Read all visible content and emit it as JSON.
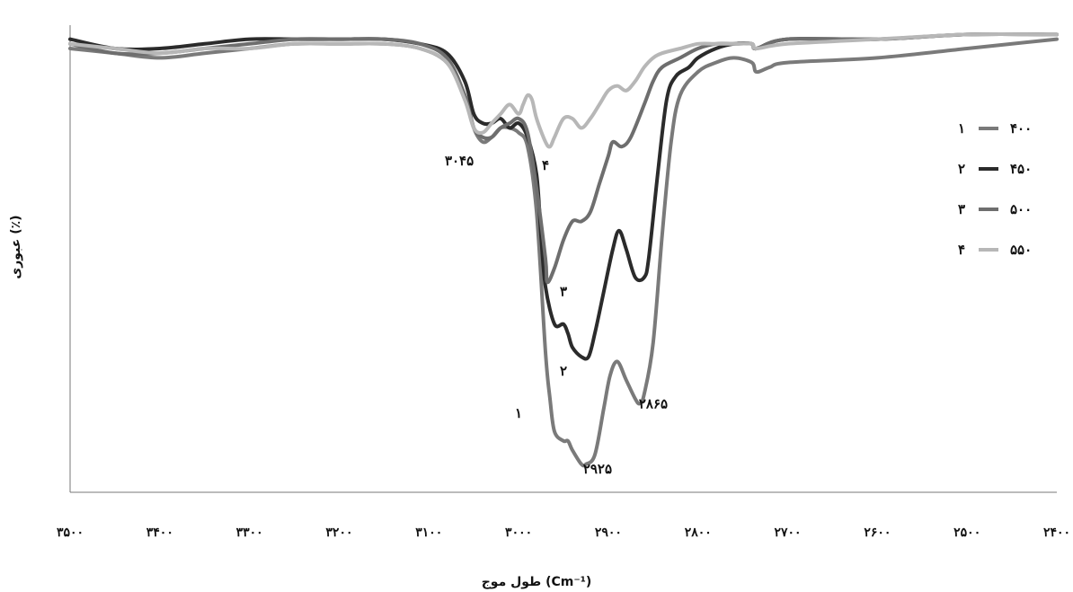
{
  "chart_data": {
    "type": "line",
    "xlabel": "طول موج",
    "xlabel_unit": "(Cm⁻¹)",
    "ylabel": "عبوری (٪)",
    "xlim": [
      3500,
      2400
    ],
    "x_reversed": true,
    "ylim": [
      0,
      100
    ],
    "grid": false,
    "legend_position": "right",
    "x_ticks": [
      {
        "value": 3500,
        "label": "۳۵۰۰"
      },
      {
        "value": 3400,
        "label": "۳۴۰۰"
      },
      {
        "value": 3300,
        "label": "۳۳۰۰"
      },
      {
        "value": 3200,
        "label": "۳۲۰۰"
      },
      {
        "value": 3100,
        "label": "۳۱۰۰"
      },
      {
        "value": 3000,
        "label": "۳۰۰۰"
      },
      {
        "value": 2900,
        "label": "۲۹۰۰"
      },
      {
        "value": 2800,
        "label": "۲۸۰۰"
      },
      {
        "value": 2700,
        "label": "۲۷۰۰"
      },
      {
        "value": 2600,
        "label": "۲۶۰۰"
      },
      {
        "value": 2500,
        "label": "۲۵۰۰"
      },
      {
        "value": 2400,
        "label": "۲۴۰۰"
      }
    ],
    "series": [
      {
        "name": "۴۰۰",
        "number": "۱",
        "color": "#7a7a7a",
        "points": [
          [
            3500,
            95
          ],
          [
            3450,
            94
          ],
          [
            3400,
            93
          ],
          [
            3350,
            94
          ],
          [
            3300,
            95
          ],
          [
            3250,
            96
          ],
          [
            3200,
            96
          ],
          [
            3150,
            96
          ],
          [
            3110,
            95
          ],
          [
            3080,
            92
          ],
          [
            3060,
            85
          ],
          [
            3050,
            78
          ],
          [
            3040,
            75
          ],
          [
            3030,
            76
          ],
          [
            3020,
            78
          ],
          [
            3010,
            78
          ],
          [
            3000,
            77
          ],
          [
            2990,
            74
          ],
          [
            2980,
            60
          ],
          [
            2970,
            30
          ],
          [
            2965,
            20
          ],
          [
            2960,
            13
          ],
          [
            2950,
            11
          ],
          [
            2945,
            11
          ],
          [
            2940,
            9
          ],
          [
            2930,
            6
          ],
          [
            2925,
            6
          ],
          [
            2915,
            8
          ],
          [
            2905,
            18
          ],
          [
            2898,
            25
          ],
          [
            2890,
            28
          ],
          [
            2880,
            24
          ],
          [
            2870,
            20
          ],
          [
            2865,
            19
          ],
          [
            2860,
            21
          ],
          [
            2850,
            32
          ],
          [
            2840,
            55
          ],
          [
            2830,
            75
          ],
          [
            2820,
            85
          ],
          [
            2800,
            90
          ],
          [
            2780,
            92
          ],
          [
            2760,
            93
          ],
          [
            2740,
            92
          ],
          [
            2735,
            90
          ],
          [
            2720,
            91
          ],
          [
            2700,
            92
          ],
          [
            2600,
            93
          ],
          [
            2500,
            95
          ],
          [
            2400,
            97
          ]
        ]
      },
      {
        "name": "۴۵۰",
        "number": "۲",
        "color": "#2b2b2b",
        "points": [
          [
            3500,
            97
          ],
          [
            3450,
            95
          ],
          [
            3400,
            95
          ],
          [
            3350,
            96
          ],
          [
            3300,
            97
          ],
          [
            3250,
            97
          ],
          [
            3200,
            97
          ],
          [
            3150,
            97
          ],
          [
            3110,
            96
          ],
          [
            3080,
            94
          ],
          [
            3060,
            88
          ],
          [
            3050,
            81
          ],
          [
            3040,
            79
          ],
          [
            3030,
            79
          ],
          [
            3020,
            80
          ],
          [
            3010,
            78
          ],
          [
            3000,
            79
          ],
          [
            2990,
            76
          ],
          [
            2980,
            68
          ],
          [
            2975,
            55
          ],
          [
            2970,
            44
          ],
          [
            2960,
            36
          ],
          [
            2950,
            36
          ],
          [
            2945,
            34
          ],
          [
            2940,
            31
          ],
          [
            2930,
            29
          ],
          [
            2922,
            29
          ],
          [
            2915,
            34
          ],
          [
            2905,
            43
          ],
          [
            2895,
            52
          ],
          [
            2888,
            56
          ],
          [
            2880,
            52
          ],
          [
            2870,
            46
          ],
          [
            2860,
            46
          ],
          [
            2855,
            50
          ],
          [
            2845,
            68
          ],
          [
            2835,
            84
          ],
          [
            2825,
            89
          ],
          [
            2810,
            91
          ],
          [
            2800,
            93
          ],
          [
            2780,
            95
          ],
          [
            2760,
            96
          ],
          [
            2740,
            96
          ],
          [
            2735,
            95
          ],
          [
            2700,
            97
          ],
          [
            2600,
            97
          ],
          [
            2500,
            98
          ],
          [
            2400,
            98
          ]
        ]
      },
      {
        "name": "۵۰۰",
        "number": "۳",
        "color": "#6e6e6e",
        "points": [
          [
            3500,
            96
          ],
          [
            3450,
            94
          ],
          [
            3400,
            94
          ],
          [
            3350,
            95
          ],
          [
            3300,
            96
          ],
          [
            3250,
            97
          ],
          [
            3200,
            97
          ],
          [
            3150,
            97
          ],
          [
            3110,
            96
          ],
          [
            3080,
            93
          ],
          [
            3060,
            85
          ],
          [
            3050,
            78
          ],
          [
            3040,
            76
          ],
          [
            3030,
            76
          ],
          [
            3020,
            78
          ],
          [
            3010,
            79
          ],
          [
            3000,
            80
          ],
          [
            2990,
            77
          ],
          [
            2980,
            65
          ],
          [
            2970,
            50
          ],
          [
            2968,
            45
          ],
          [
            2960,
            48
          ],
          [
            2950,
            54
          ],
          [
            2940,
            58
          ],
          [
            2930,
            58
          ],
          [
            2920,
            60
          ],
          [
            2910,
            66
          ],
          [
            2900,
            72
          ],
          [
            2895,
            75
          ],
          [
            2885,
            74
          ],
          [
            2875,
            76
          ],
          [
            2860,
            83
          ],
          [
            2850,
            88
          ],
          [
            2840,
            91
          ],
          [
            2820,
            93
          ],
          [
            2800,
            95
          ],
          [
            2780,
            96
          ],
          [
            2760,
            96
          ],
          [
            2740,
            96
          ],
          [
            2735,
            95
          ],
          [
            2700,
            97
          ],
          [
            2600,
            97
          ],
          [
            2500,
            98
          ],
          [
            2400,
            98
          ]
        ]
      },
      {
        "name": "۵۵۰",
        "number": "۴",
        "color": "#b7b7b7",
        "points": [
          [
            3500,
            96
          ],
          [
            3450,
            95
          ],
          [
            3400,
            94
          ],
          [
            3350,
            95
          ],
          [
            3300,
            95
          ],
          [
            3250,
            96
          ],
          [
            3200,
            96
          ],
          [
            3150,
            96
          ],
          [
            3110,
            95
          ],
          [
            3080,
            92
          ],
          [
            3060,
            84
          ],
          [
            3050,
            78
          ],
          [
            3040,
            77
          ],
          [
            3030,
            79
          ],
          [
            3020,
            81
          ],
          [
            3010,
            83
          ],
          [
            3000,
            81
          ],
          [
            2995,
            83
          ],
          [
            2990,
            85
          ],
          [
            2985,
            84
          ],
          [
            2980,
            80
          ],
          [
            2970,
            75
          ],
          [
            2965,
            74
          ],
          [
            2960,
            76
          ],
          [
            2950,
            80
          ],
          [
            2940,
            80
          ],
          [
            2930,
            78
          ],
          [
            2920,
            80
          ],
          [
            2910,
            83
          ],
          [
            2900,
            86
          ],
          [
            2890,
            87
          ],
          [
            2880,
            86
          ],
          [
            2870,
            88
          ],
          [
            2860,
            91
          ],
          [
            2850,
            93
          ],
          [
            2840,
            94
          ],
          [
            2820,
            95
          ],
          [
            2800,
            96
          ],
          [
            2780,
            96
          ],
          [
            2760,
            96
          ],
          [
            2740,
            96
          ],
          [
            2735,
            95
          ],
          [
            2700,
            96
          ],
          [
            2600,
            97
          ],
          [
            2500,
            98
          ],
          [
            2400,
            98
          ]
        ]
      }
    ],
    "annotations": [
      {
        "text": "۳۰۴۵",
        "x": 3050,
        "y": 70,
        "anchor": "end"
      },
      {
        "text": "۴",
        "x": 2970,
        "y": 69,
        "anchor": "middle"
      },
      {
        "text": "۳",
        "x": 2950,
        "y": 42,
        "anchor": "middle"
      },
      {
        "text": "۲",
        "x": 2950,
        "y": 25,
        "anchor": "middle"
      },
      {
        "text": "۱",
        "x": 3000,
        "y": 16,
        "anchor": "middle"
      },
      {
        "text": "۲۹۲۵",
        "x": 2912,
        "y": 4,
        "anchor": "middle"
      },
      {
        "text": "۲۸۶۵",
        "x": 2866,
        "y": 18,
        "anchor": "start"
      }
    ]
  }
}
